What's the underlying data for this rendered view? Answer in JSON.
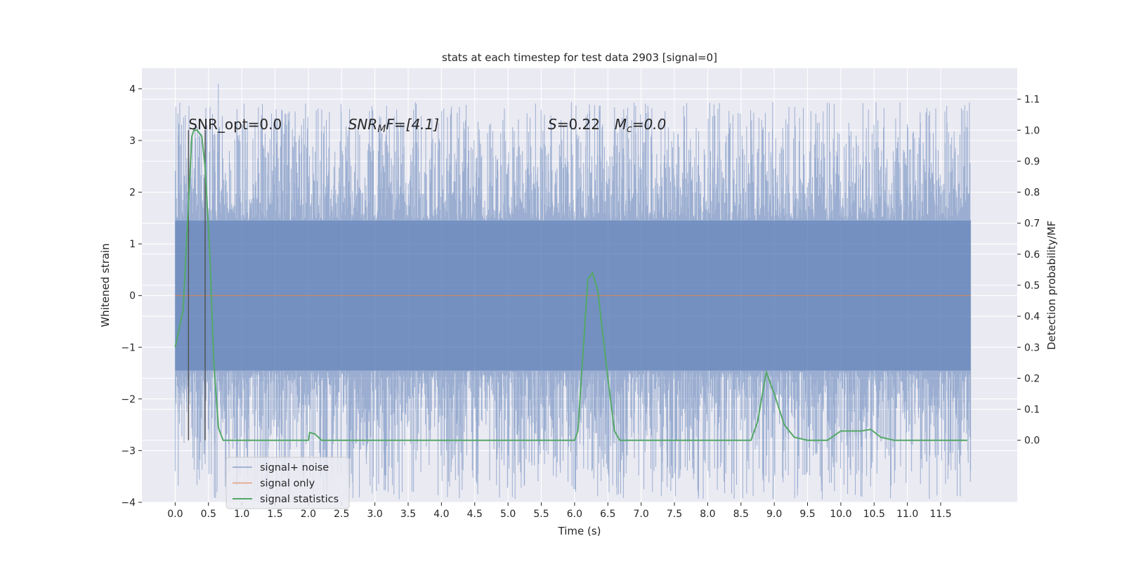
{
  "chart_data": {
    "type": "line",
    "title": "stats at each timestep for test data 2903 [signal=0]",
    "xlabel": "Time (s)",
    "ylabel_left": "Whitened strain",
    "ylabel_right": "Detection probability/MF",
    "xlim": [
      -0.5,
      12.65
    ],
    "ylim_left": [
      -4,
      4.4
    ],
    "ylim_right": [
      -0.2,
      1.2
    ],
    "x_ticks": [
      "0.0",
      "0.5",
      "1.0",
      "1.5",
      "2.0",
      "2.5",
      "3.0",
      "3.5",
      "4.0",
      "4.5",
      "5.0",
      "5.5",
      "6.0",
      "6.5",
      "7.0",
      "7.5",
      "8.0",
      "8.5",
      "9.0",
      "9.5",
      "10.0",
      "10.5",
      "11.0",
      "11.5"
    ],
    "y_ticks_left": [
      "4",
      "3",
      "2",
      "1",
      "0",
      "−1",
      "−2",
      "−3",
      "−4"
    ],
    "y_ticks_right": [
      "1.1",
      "1.0",
      "0.9",
      "0.8",
      "0.7",
      "0.6",
      "0.5",
      "0.4",
      "0.3",
      "0.2",
      "0.1",
      "0.0"
    ],
    "grid": true,
    "annotations": [
      {
        "text": "SNR_opt=0.0",
        "x": 0.2
      },
      {
        "text": "SNR",
        "sub": "M",
        "text2": "F=[4.1]",
        "x": 2.6
      },
      {
        "text": "S",
        "text2": "=0.22",
        "x": 5.6
      },
      {
        "text": "M",
        "sub": "c",
        "text2": "=0.0",
        "x": 6.6
      }
    ],
    "vertical_lines_x": [
      0.2,
      0.45
    ],
    "series": [
      {
        "name": "signal+ noise",
        "color": "#4c72b0",
        "axis": "left",
        "x_range": [
          0.0,
          11.95
        ],
        "envelope_upper": 1.45,
        "envelope_lower": -1.45,
        "extreme_max": 4.1,
        "extreme_min": -3.6
      },
      {
        "name": "signal only",
        "color": "#dd8452",
        "axis": "left",
        "x": [
          0.0,
          11.95
        ],
        "y": [
          0,
          0
        ]
      },
      {
        "name": "signal statistics",
        "color": "#55a868",
        "axis": "right",
        "x": [
          0.0,
          0.12,
          0.25,
          0.28,
          0.33,
          0.4,
          0.45,
          0.52,
          0.58,
          0.65,
          0.72,
          1.0,
          1.5,
          2.0,
          2.02,
          2.1,
          2.2,
          3.0,
          4.0,
          5.0,
          5.5,
          5.8,
          6.0,
          6.05,
          6.2,
          6.27,
          6.35,
          6.5,
          6.6,
          6.68,
          7.0,
          8.0,
          8.55,
          8.65,
          8.75,
          8.88,
          9.0,
          9.15,
          9.3,
          9.5,
          9.8,
          10.0,
          10.05,
          10.3,
          10.45,
          10.6,
          10.8,
          11.5,
          11.9
        ],
        "y": [
          0.3,
          0.42,
          0.98,
          1.0,
          1.0,
          0.98,
          0.88,
          0.6,
          0.25,
          0.04,
          0.0,
          0.0,
          0.0,
          0.0,
          0.025,
          0.02,
          0.0,
          0.0,
          0.0,
          0.0,
          0.0,
          0.0,
          0.0,
          0.03,
          0.52,
          0.54,
          0.48,
          0.2,
          0.03,
          0.0,
          0.0,
          0.0,
          0.0,
          0.0,
          0.06,
          0.22,
          0.15,
          0.05,
          0.01,
          0.0,
          0.0,
          0.03,
          0.03,
          0.03,
          0.035,
          0.01,
          0.0,
          0.0,
          0.0
        ]
      }
    ],
    "legend": {
      "placement": "lower-left",
      "items": [
        "signal+ noise",
        "signal only",
        "signal statistics"
      ]
    }
  }
}
